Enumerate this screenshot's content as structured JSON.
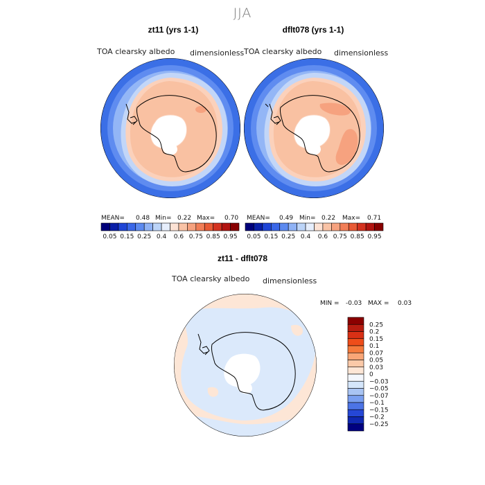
{
  "page": {
    "season_title": "JJA"
  },
  "panels": [
    {
      "title": "zt11 (yrs 1-1)",
      "variable": "TOA clearsky albedo",
      "units": "dimensionless",
      "stats": {
        "mean_label": "MEAN=",
        "mean": "0.48",
        "min_label": "Min=",
        "min": "0.22",
        "max_label": "Max=",
        "max": "0.70"
      }
    },
    {
      "title": "dflt078 (yrs 1-1)",
      "variable": "TOA clearsky albedo",
      "units": "dimensionless",
      "stats": {
        "mean_label": "MEAN=",
        "mean": "0.49",
        "min_label": "Min=",
        "min": "0.22",
        "max_label": "Max=",
        "max": "0.71"
      }
    }
  ],
  "colorbar": {
    "tick_labels": [
      "0.05",
      "0.15",
      "0.25",
      "0.4",
      "0.6",
      "0.75",
      "0.85",
      "0.95"
    ],
    "colors": [
      "#00007a",
      "#0a1fa8",
      "#1f45d6",
      "#3a67e8",
      "#5c8af0",
      "#8fb2f5",
      "#bcd4f8",
      "#e6eefc",
      "#fde2d4",
      "#f9c3a6",
      "#f6a27f",
      "#f17e57",
      "#e85a35",
      "#d4321f",
      "#b21410",
      "#880000"
    ]
  },
  "difference": {
    "title": "zt11 - dflt078",
    "variable": "TOA clearsky albedo",
    "units": "dimensionless",
    "min_label": "MIN =",
    "min": "-0.03",
    "max_label": "MAX =",
    "max": "0.03",
    "legend_labels": [
      "0.25",
      "0.2",
      "0.15",
      "0.1",
      "0.07",
      "0.05",
      "0.03",
      "0",
      "-0.03",
      "-0.05",
      "-0.07",
      "-0.1",
      "-0.15",
      "-0.2",
      "-0.25"
    ],
    "legend_colors": [
      "#8b0000",
      "#b71c10",
      "#d93015",
      "#ee4d1a",
      "#f57a3c",
      "#f9a677",
      "#fbc9a8",
      "#fde6d6",
      "#f4f7fd",
      "#d5e6fb",
      "#a9c4f3",
      "#7a9ff0",
      "#4c74e6",
      "#2547d6",
      "#1028b2",
      "#000080"
    ]
  }
}
